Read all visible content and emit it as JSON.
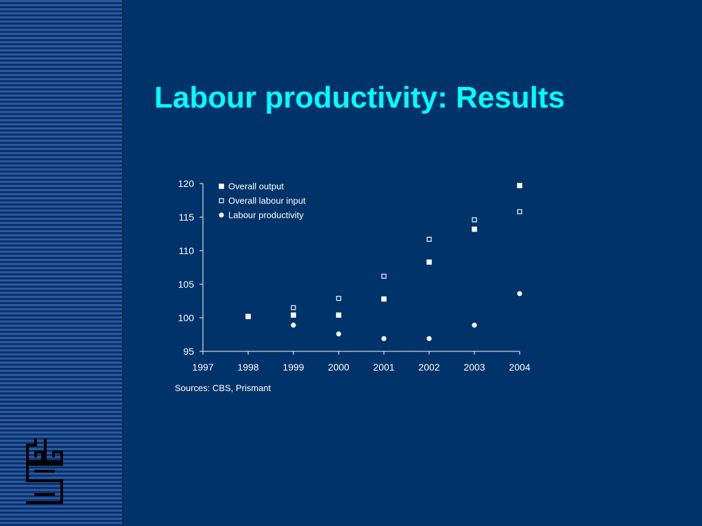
{
  "slide": {
    "title": "Labour productivity: Results",
    "source_note": "Sources: CBS, Prismant",
    "logo_text": "cbs"
  },
  "colors": {
    "background": "#00336a",
    "stripe_light": "#2a5a9a",
    "stripe_dark": "#0a3070",
    "title": "#00ffff",
    "text": "#ffffff"
  },
  "chart_data": {
    "type": "scatter",
    "title": "",
    "xlabel": "",
    "ylabel": "",
    "xlim": [
      1997,
      2004
    ],
    "ylim": [
      95,
      120
    ],
    "x_ticks": [
      "1997",
      "1998",
      "1999",
      "2000",
      "2001",
      "2002",
      "2003",
      "2004"
    ],
    "y_ticks": [
      "95",
      "100",
      "105",
      "110",
      "115",
      "120"
    ],
    "grid": false,
    "legend_position": "top-left",
    "series": [
      {
        "name": "Overall output",
        "marker": "filled-square",
        "points": [
          [
            1998,
            100.2
          ],
          [
            1999,
            100.4
          ],
          [
            2000,
            100.4
          ],
          [
            2001,
            102.8
          ],
          [
            2002,
            108.3
          ],
          [
            2003,
            113.2
          ],
          [
            2004,
            119.7
          ]
        ]
      },
      {
        "name": "Overall labour input",
        "marker": "hollow-square",
        "points": [
          [
            1998,
            100.2
          ],
          [
            1999,
            101.5
          ],
          [
            2000,
            102.9
          ],
          [
            2001,
            106.2
          ],
          [
            2002,
            111.7
          ],
          [
            2003,
            114.6
          ],
          [
            2004,
            115.8
          ]
        ]
      },
      {
        "name": "Labour productivity",
        "marker": "filled-circle",
        "points": [
          [
            1999,
            98.9
          ],
          [
            2000,
            97.6
          ],
          [
            2001,
            96.9
          ],
          [
            2002,
            96.9
          ],
          [
            2003,
            98.9
          ],
          [
            2004,
            103.6
          ]
        ]
      }
    ]
  }
}
